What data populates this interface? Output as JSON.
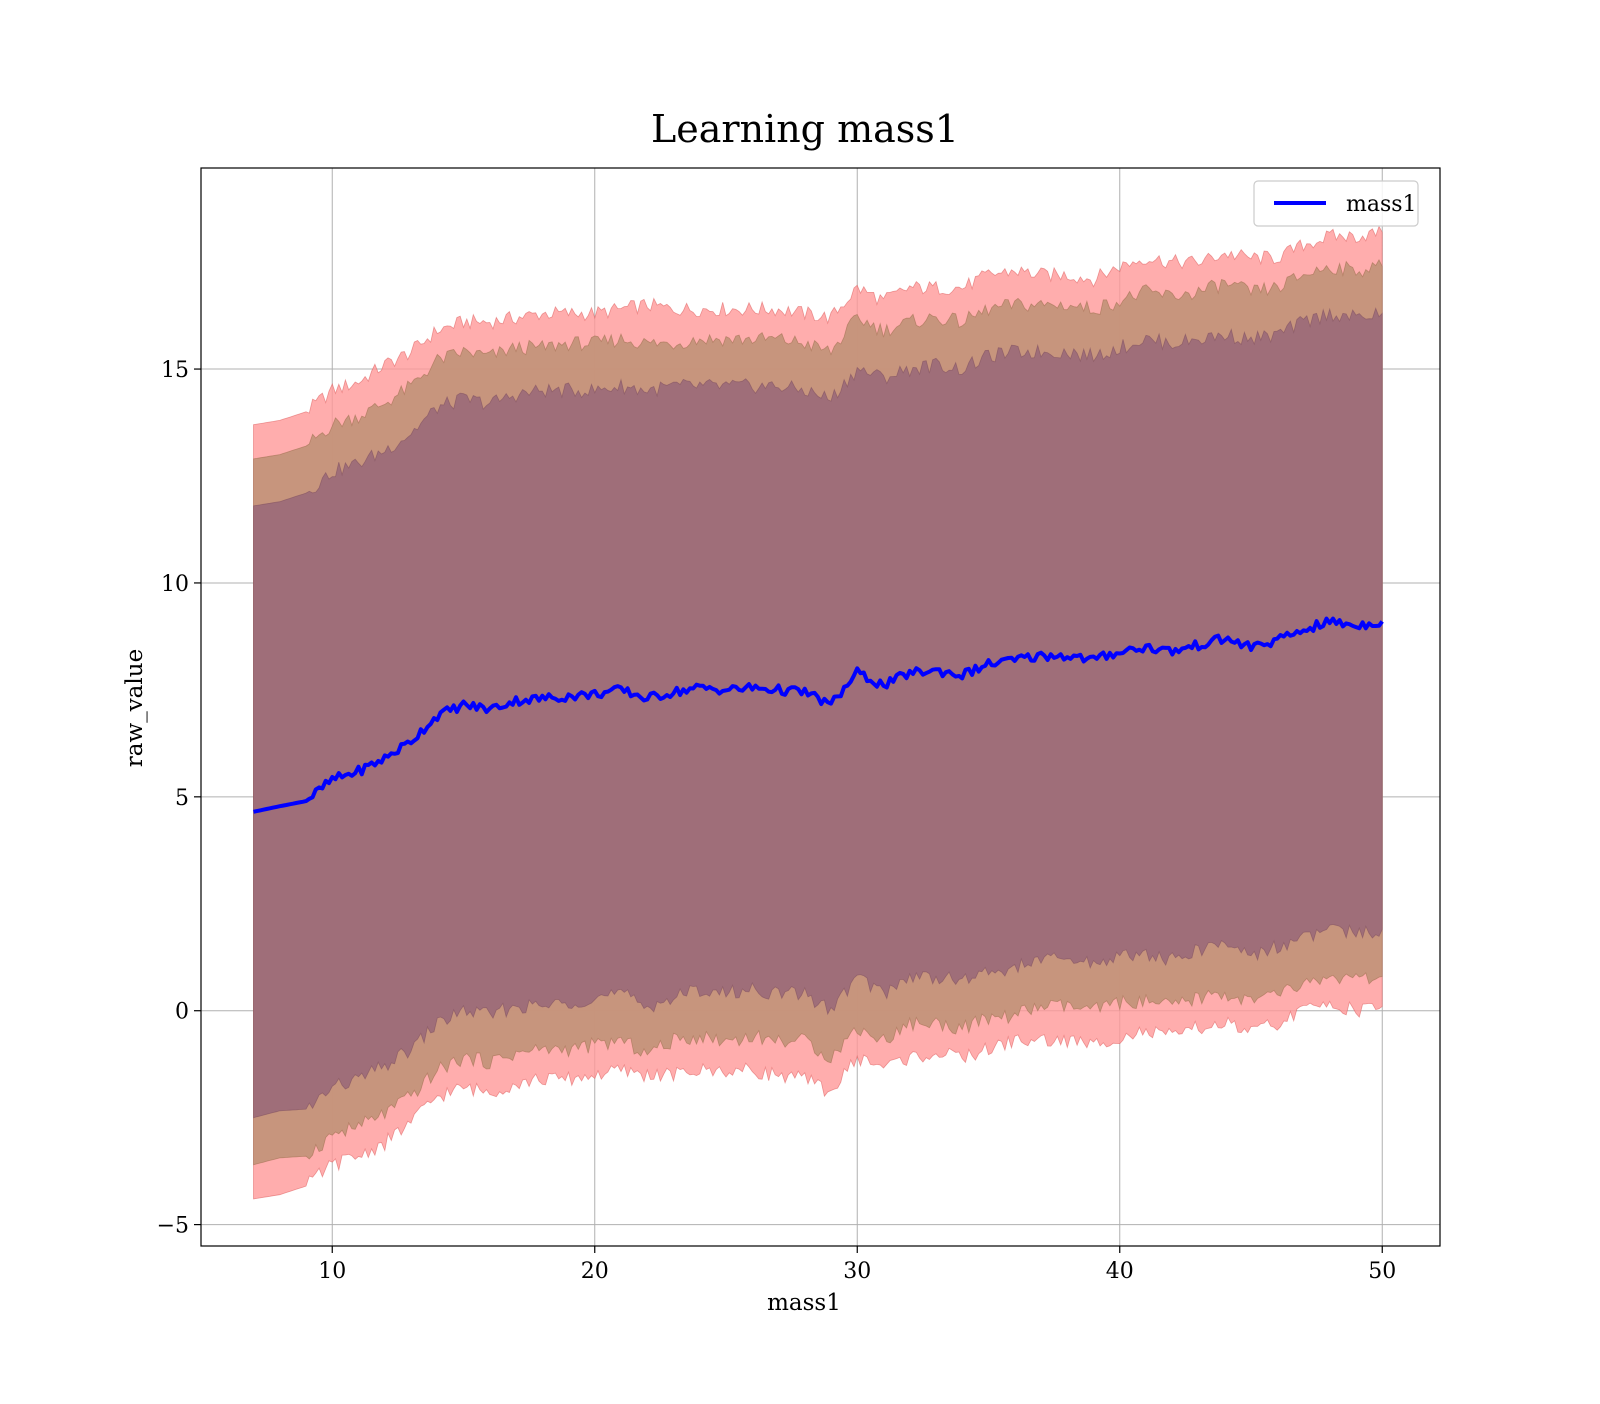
{
  "chart_data": {
    "type": "line",
    "title": "Learning mass1",
    "xlabel": "mass1",
    "ylabel": "raw_value",
    "xlim": [
      5,
      52.2
    ],
    "ylim": [
      -5.5,
      19.7
    ],
    "xticks": [
      10,
      20,
      30,
      40,
      50
    ],
    "yticks": [
      -5,
      0,
      5,
      10,
      15
    ],
    "x_tick_labels": [
      "10",
      "20",
      "30",
      "40",
      "50"
    ],
    "y_tick_labels": [
      "−5",
      "0",
      "5",
      "10",
      "15"
    ],
    "grid": true,
    "legend": {
      "position": "top-right",
      "entries": [
        "mass1"
      ]
    },
    "colors": {
      "line": "#0000ff",
      "band_outer": "#ff9999",
      "band_middle": "#c4947a",
      "band_inner": "#9f6e79",
      "grid": "#b0b0b0"
    },
    "x": [
      7,
      8,
      9,
      10,
      11,
      12,
      13,
      14,
      15,
      16,
      17,
      18,
      19,
      20,
      21,
      22,
      23,
      24,
      25,
      26,
      27,
      28,
      29,
      30,
      31,
      32,
      33,
      34,
      35,
      36,
      37,
      38,
      39,
      40,
      41,
      42,
      43,
      44,
      45,
      46,
      47,
      48,
      49,
      50
    ],
    "series": [
      {
        "name": "mass1",
        "values": [
          4.65,
          4.78,
          4.9,
          5.4,
          5.6,
          5.9,
          6.3,
          6.9,
          7.15,
          7.05,
          7.25,
          7.3,
          7.35,
          7.4,
          7.5,
          7.3,
          7.45,
          7.55,
          7.5,
          7.55,
          7.5,
          7.45,
          7.15,
          7.9,
          7.6,
          7.9,
          7.95,
          7.85,
          8.1,
          8.2,
          8.3,
          8.3,
          8.2,
          8.4,
          8.5,
          8.4,
          8.55,
          8.7,
          8.5,
          8.65,
          8.9,
          9.1,
          9.0,
          9.1
        ]
      }
    ],
    "bands": [
      {
        "level": "outer",
        "upper": [
          13.7,
          13.8,
          14.0,
          14.5,
          14.7,
          15.1,
          15.4,
          15.9,
          16.1,
          16.1,
          16.2,
          16.3,
          16.3,
          16.3,
          16.4,
          16.5,
          16.4,
          16.4,
          16.4,
          16.4,
          16.4,
          16.3,
          16.2,
          16.9,
          16.6,
          16.9,
          16.9,
          16.9,
          17.2,
          17.3,
          17.2,
          17.2,
          17.1,
          17.4,
          17.6,
          17.5,
          17.5,
          17.7,
          17.6,
          17.6,
          17.9,
          18.1,
          18.1,
          18.2
        ],
        "lower": [
          -4.4,
          -4.3,
          -4.1,
          -3.6,
          -3.4,
          -3.1,
          -2.6,
          -2.0,
          -1.8,
          -1.9,
          -1.7,
          -1.6,
          -1.6,
          -1.5,
          -1.4,
          -1.5,
          -1.5,
          -1.4,
          -1.4,
          -1.4,
          -1.5,
          -1.6,
          -1.9,
          -1.1,
          -1.3,
          -1.1,
          -1.0,
          -1.1,
          -0.9,
          -0.7,
          -0.7,
          -0.7,
          -0.8,
          -0.6,
          -0.5,
          -0.6,
          -0.4,
          -0.3,
          -0.5,
          -0.3,
          0.0,
          0.2,
          0.0,
          0.1
        ]
      },
      {
        "level": "middle",
        "upper": [
          12.9,
          13.0,
          13.2,
          13.7,
          13.9,
          14.2,
          14.6,
          15.2,
          15.4,
          15.3,
          15.5,
          15.5,
          15.6,
          15.6,
          15.7,
          15.6,
          15.6,
          15.7,
          15.7,
          15.7,
          15.7,
          15.6,
          15.4,
          16.2,
          15.9,
          16.1,
          16.2,
          16.1,
          16.4,
          16.5,
          16.5,
          16.5,
          16.4,
          16.6,
          16.8,
          16.7,
          16.8,
          17.0,
          16.8,
          16.9,
          17.2,
          17.4,
          17.3,
          17.4
        ]
      },
      {
        "level": "inner",
        "upper": [
          11.8,
          11.9,
          12.1,
          12.6,
          12.8,
          13.1,
          13.5,
          14.1,
          14.3,
          14.2,
          14.4,
          14.5,
          14.5,
          14.5,
          14.6,
          14.5,
          14.6,
          14.6,
          14.6,
          14.6,
          14.6,
          14.5,
          14.3,
          15.0,
          14.8,
          15.0,
          15.1,
          15.0,
          15.3,
          15.4,
          15.4,
          15.4,
          15.3,
          15.5,
          15.7,
          15.6,
          15.7,
          15.8,
          15.7,
          15.8,
          16.1,
          16.3,
          16.2,
          16.3
        ]
      }
    ]
  }
}
